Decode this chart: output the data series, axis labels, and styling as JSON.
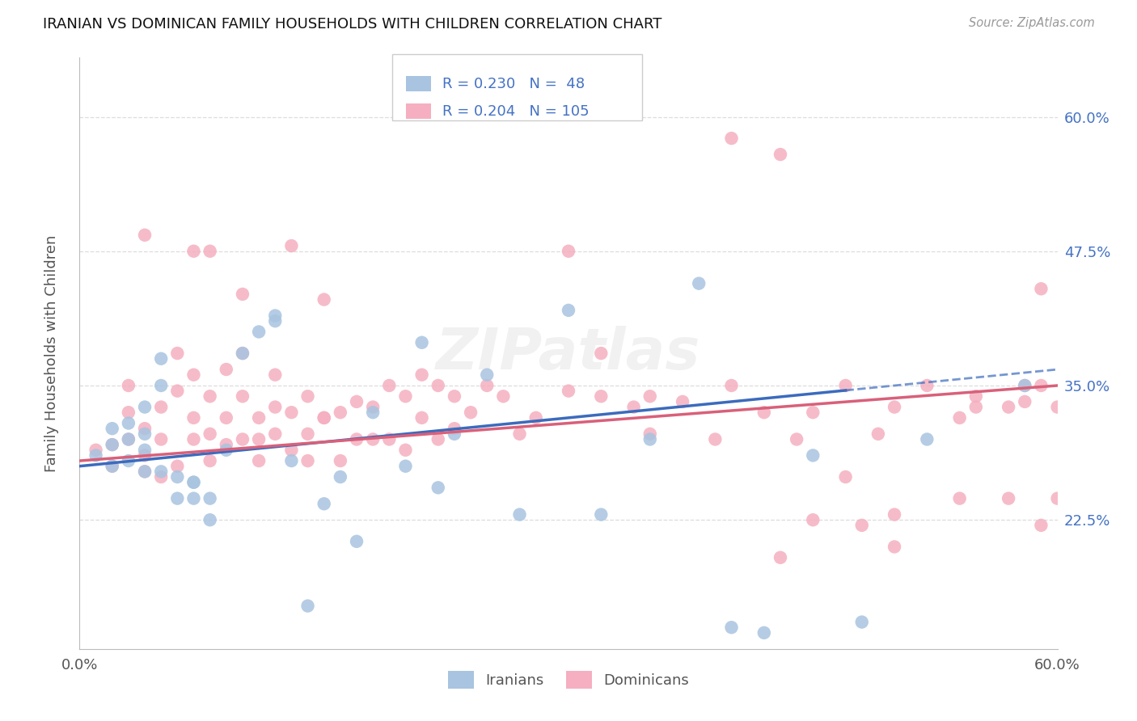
{
  "title": "IRANIAN VS DOMINICAN FAMILY HOUSEHOLDS WITH CHILDREN CORRELATION CHART",
  "source": "Source: ZipAtlas.com",
  "ylabel": "Family Households with Children",
  "iranian_R": 0.23,
  "iranian_N": 48,
  "dominican_R": 0.204,
  "dominican_N": 105,
  "iranian_color": "#a8c4e0",
  "dominican_color": "#f5afc0",
  "iranian_line_color": "#3b6bbd",
  "dominican_line_color": "#d9607a",
  "right_tick_color": "#4472c4",
  "watermark": "ZIPatlas",
  "xlim": [
    0.0,
    0.6
  ],
  "ylim": [
    0.105,
    0.655
  ],
  "ytick_vals": [
    0.225,
    0.35,
    0.475,
    0.6
  ],
  "ytick_labels_right": [
    "22.5%",
    "35.0%",
    "47.5%",
    "60.0%"
  ],
  "grid_color": "#dddddd",
  "bg_color": "#ffffff",
  "iranian_x": [
    0.01,
    0.02,
    0.02,
    0.02,
    0.03,
    0.03,
    0.03,
    0.04,
    0.04,
    0.04,
    0.04,
    0.05,
    0.05,
    0.05,
    0.06,
    0.06,
    0.07,
    0.07,
    0.07,
    0.08,
    0.08,
    0.09,
    0.1,
    0.11,
    0.12,
    0.12,
    0.13,
    0.14,
    0.15,
    0.16,
    0.17,
    0.18,
    0.2,
    0.21,
    0.22,
    0.23,
    0.25,
    0.27,
    0.3,
    0.32,
    0.35,
    0.38,
    0.4,
    0.42,
    0.45,
    0.48,
    0.52,
    0.58
  ],
  "iranian_y": [
    0.285,
    0.295,
    0.31,
    0.275,
    0.3,
    0.315,
    0.28,
    0.29,
    0.305,
    0.27,
    0.33,
    0.35,
    0.375,
    0.27,
    0.265,
    0.245,
    0.26,
    0.245,
    0.26,
    0.245,
    0.225,
    0.29,
    0.38,
    0.4,
    0.41,
    0.415,
    0.28,
    0.145,
    0.24,
    0.265,
    0.205,
    0.325,
    0.275,
    0.39,
    0.255,
    0.305,
    0.36,
    0.23,
    0.42,
    0.23,
    0.3,
    0.445,
    0.125,
    0.12,
    0.285,
    0.13,
    0.3,
    0.35
  ],
  "dominican_x": [
    0.01,
    0.02,
    0.02,
    0.03,
    0.03,
    0.03,
    0.04,
    0.04,
    0.04,
    0.04,
    0.05,
    0.05,
    0.05,
    0.06,
    0.06,
    0.06,
    0.07,
    0.07,
    0.07,
    0.07,
    0.08,
    0.08,
    0.08,
    0.08,
    0.09,
    0.09,
    0.09,
    0.1,
    0.1,
    0.1,
    0.1,
    0.11,
    0.11,
    0.11,
    0.12,
    0.12,
    0.12,
    0.13,
    0.13,
    0.13,
    0.14,
    0.14,
    0.14,
    0.15,
    0.15,
    0.15,
    0.16,
    0.16,
    0.17,
    0.17,
    0.18,
    0.18,
    0.19,
    0.19,
    0.2,
    0.2,
    0.21,
    0.21,
    0.22,
    0.22,
    0.23,
    0.23,
    0.24,
    0.25,
    0.26,
    0.27,
    0.28,
    0.3,
    0.32,
    0.34,
    0.35,
    0.37,
    0.39,
    0.4,
    0.42,
    0.44,
    0.45,
    0.47,
    0.49,
    0.5,
    0.52,
    0.54,
    0.55,
    0.57,
    0.58,
    0.59,
    0.3,
    0.32,
    0.35,
    0.4,
    0.43,
    0.45,
    0.47,
    0.5,
    0.54,
    0.57,
    0.59,
    0.6,
    0.43,
    0.48,
    0.5,
    0.55,
    0.58,
    0.6,
    0.59
  ],
  "dominican_y": [
    0.29,
    0.295,
    0.275,
    0.3,
    0.325,
    0.35,
    0.31,
    0.27,
    0.285,
    0.49,
    0.3,
    0.33,
    0.265,
    0.38,
    0.345,
    0.275,
    0.32,
    0.36,
    0.3,
    0.475,
    0.34,
    0.28,
    0.305,
    0.475,
    0.365,
    0.295,
    0.32,
    0.3,
    0.34,
    0.38,
    0.435,
    0.32,
    0.3,
    0.28,
    0.33,
    0.305,
    0.36,
    0.48,
    0.325,
    0.29,
    0.34,
    0.305,
    0.28,
    0.43,
    0.32,
    0.32,
    0.325,
    0.28,
    0.335,
    0.3,
    0.33,
    0.3,
    0.35,
    0.3,
    0.34,
    0.29,
    0.36,
    0.32,
    0.35,
    0.3,
    0.34,
    0.31,
    0.325,
    0.35,
    0.34,
    0.305,
    0.32,
    0.345,
    0.34,
    0.33,
    0.34,
    0.335,
    0.3,
    0.35,
    0.325,
    0.3,
    0.325,
    0.35,
    0.305,
    0.33,
    0.35,
    0.32,
    0.34,
    0.33,
    0.35,
    0.22,
    0.475,
    0.38,
    0.305,
    0.58,
    0.565,
    0.225,
    0.265,
    0.23,
    0.245,
    0.245,
    0.44,
    0.245,
    0.19,
    0.22,
    0.2,
    0.33,
    0.335,
    0.33,
    0.35
  ]
}
